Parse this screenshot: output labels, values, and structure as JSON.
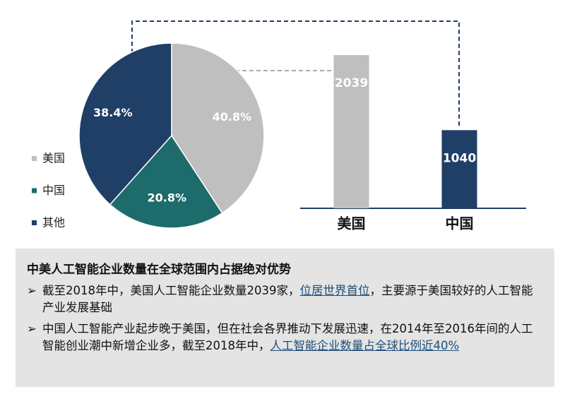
{
  "chart_data": [
    {
      "type": "pie",
      "categories": [
        "美国",
        "中国",
        "其他"
      ],
      "values": [
        40.8,
        20.8,
        38.4
      ],
      "value_labels": [
        "40.8%",
        "20.8%",
        "38.4%"
      ],
      "colors": [
        "#bfbfbf",
        "#1e6b6b",
        "#1f3f66"
      ],
      "legend": "left"
    },
    {
      "type": "bar",
      "categories": [
        "美国",
        "中国"
      ],
      "values": [
        2039,
        1040
      ],
      "colors": [
        "#bfbfbf",
        "#1f3f66"
      ]
    }
  ],
  "summary": {
    "title": "中美人工智能企业数量在全球范围内占据绝对优势",
    "bullets": [
      {
        "parts": [
          {
            "text": "截至2018年中，美国人工智能企业数量2039家，"
          },
          {
            "text": "位居世界首位",
            "link": true
          },
          {
            "text": "，主要源于美国较好的人工智能产业发展基础"
          }
        ]
      },
      {
        "parts": [
          {
            "text": "中国人工智能产业起步晚于美国，但在社会各界推动下发展迅速，在2014年至2016年间的人工智能创业潮中新增企业多，截至2018年中，"
          },
          {
            "text": "人工智能企业数量占全球比例近40%",
            "link": true
          }
        ]
      }
    ]
  }
}
